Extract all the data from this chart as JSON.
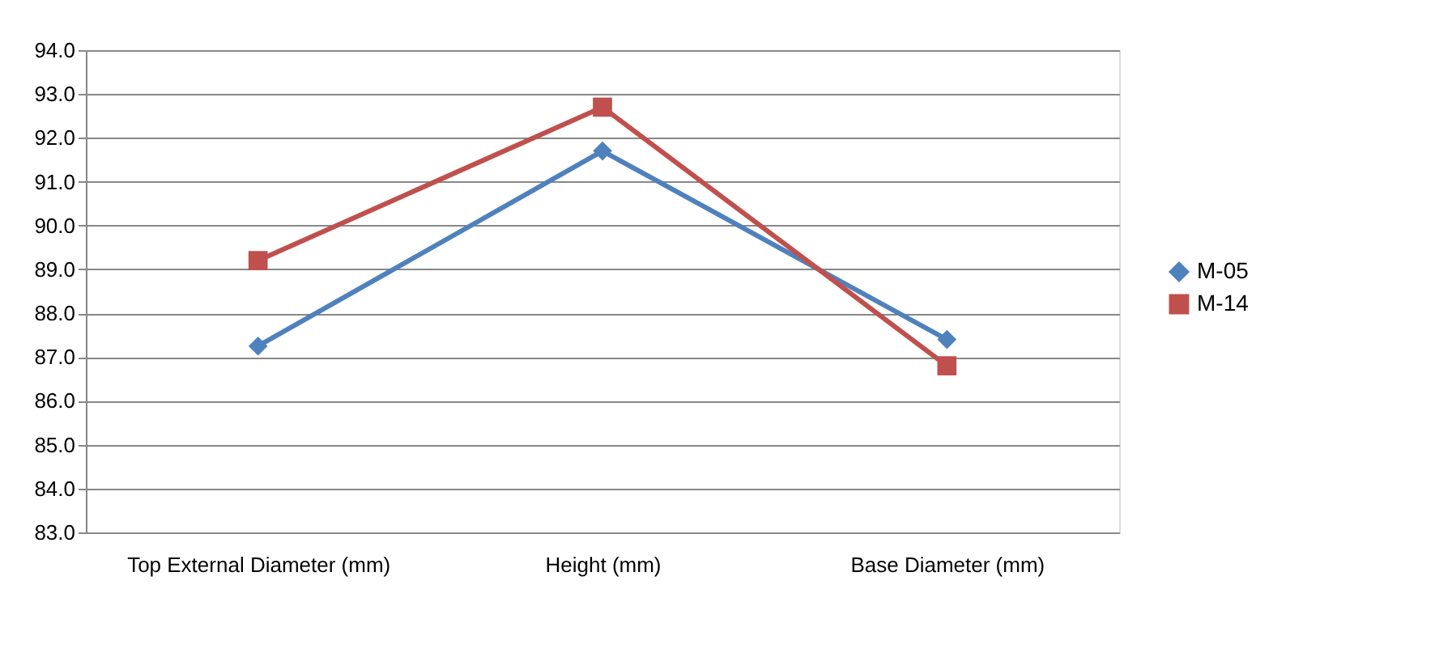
{
  "chart_data": {
    "type": "line",
    "categories": [
      "Top External Diameter (mm)",
      "Height (mm)",
      "Base Diameter (mm)"
    ],
    "series": [
      {
        "name": "M-05",
        "color": "#4f81bd",
        "values": [
          87.25,
          91.7,
          87.4
        ],
        "marker": "diamond"
      },
      {
        "name": "M-14",
        "color": "#c0504d",
        "values": [
          89.2,
          92.7,
          86.8
        ],
        "marker": "square"
      }
    ],
    "ylim": [
      83,
      94
    ],
    "yticks": [
      {
        "value": 83,
        "label": "83.0"
      },
      {
        "value": 84,
        "label": "84.0"
      },
      {
        "value": 85,
        "label": "85.0"
      },
      {
        "value": 86,
        "label": "86.0"
      },
      {
        "value": 87,
        "label": "87.0"
      },
      {
        "value": 88,
        "label": "88.0"
      },
      {
        "value": 89,
        "label": "89.0"
      },
      {
        "value": 90,
        "label": "90.0"
      },
      {
        "value": 91,
        "label": "91.0"
      },
      {
        "value": 92,
        "label": "92.0"
      },
      {
        "value": 93,
        "label": "93.0"
      },
      {
        "value": 94,
        "label": "94.0"
      }
    ],
    "grid": "y",
    "legend": "right"
  }
}
